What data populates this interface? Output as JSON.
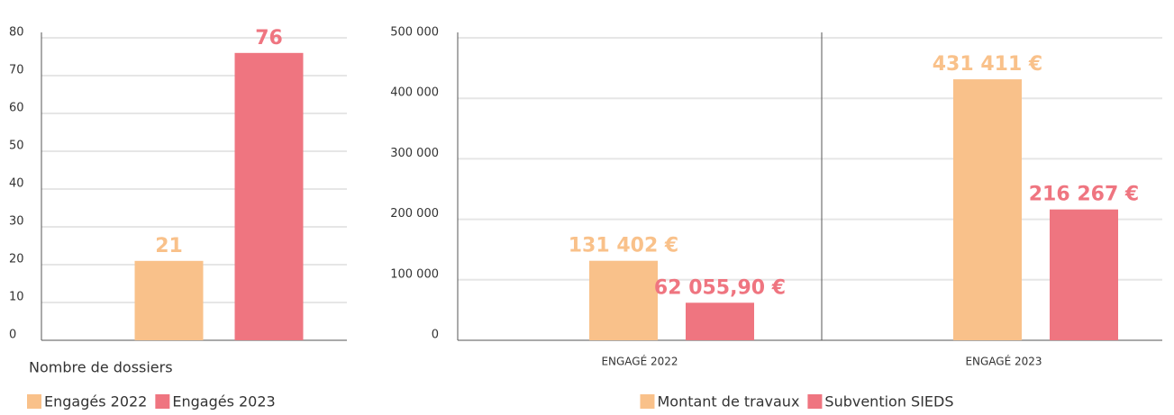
{
  "chart_data": [
    {
      "type": "bar",
      "x_label": "Nombre de dossiers",
      "categories": [
        null
      ],
      "series": [
        {
          "name": "Engagés 2022",
          "color": "#f9c18a",
          "values": [
            21
          ]
        },
        {
          "name": "Engagés 2023",
          "color": "#ef7580",
          "values": [
            76
          ]
        }
      ],
      "ylim": [
        0,
        80
      ],
      "yticks": [
        0,
        10,
        20,
        30,
        40,
        50,
        60,
        70,
        80
      ],
      "grid": true
    },
    {
      "type": "bar",
      "categories": [
        "ENGAGÉ 2022",
        "ENGAGÉ 2023"
      ],
      "series": [
        {
          "name": "Montant de travaux",
          "color": "#f9c18a",
          "values": [
            131402,
            431411
          ],
          "value_labels": [
            "131 402 €",
            "431 411 €"
          ]
        },
        {
          "name": "Subvention SIEDS",
          "color": "#ef7580",
          "values": [
            62055.9,
            216267
          ],
          "value_labels": [
            "62 055,90 €",
            "216 267 €"
          ]
        }
      ],
      "ylim": [
        0,
        500000
      ],
      "yticks": [
        0,
        {
          "value": 100000,
          "label": "100 000"
        },
        {
          "value": 200000,
          "label": "200 000"
        },
        {
          "value": 300000,
          "label": "300 000"
        },
        {
          "value": 400000,
          "label": "400 000"
        },
        {
          "value": 500000,
          "label": "500 000"
        }
      ],
      "grid": true
    }
  ]
}
